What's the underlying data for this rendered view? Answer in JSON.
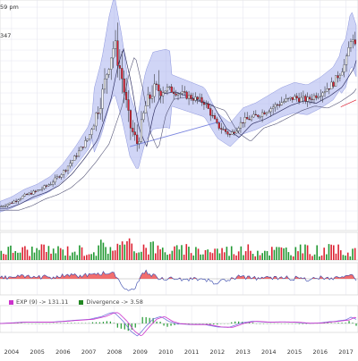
{
  "header": {
    "time_fragment": "59 pm",
    "value_fragment": "347"
  },
  "macd_legend": {
    "exp_label": "EXP (9) -> 131.11",
    "exp_color": "#cc33cc",
    "divergence_label": "Divergence -> 3.58",
    "divergence_color": "#228822"
  },
  "chart_data": {
    "type": "candlestick",
    "x_tick_labels": [
      "2004",
      "2005",
      "2006",
      "2007",
      "2008",
      "2009",
      "2010",
      "2011",
      "2012",
      "2013",
      "2014",
      "2015",
      "2016",
      "2017"
    ],
    "grid": true,
    "colors": {
      "up": "#229933",
      "down": "#dd2233",
      "bollinger_band": "#aab2ee",
      "moving_average": "#333366",
      "macd_line": "#7777dd",
      "signal_line": "#cc33cc",
      "rsi_fill": "#ee5555",
      "trendline": "#7b86e0"
    },
    "price": {
      "years": [
        2003.5,
        2004.0,
        2004.5,
        2005.0,
        2005.5,
        2006.0,
        2006.5,
        2007.0,
        2007.5,
        2007.8,
        2008.0,
        2008.3,
        2008.6,
        2008.9,
        2009.2,
        2009.5,
        2010.0,
        2010.5,
        2011.0,
        2011.5,
        2012.0,
        2012.5,
        2013.0,
        2013.5,
        2014.0,
        2014.5,
        2015.0,
        2015.5,
        2016.0,
        2016.5,
        2017.0,
        2017.2,
        2017.4
      ],
      "close": [
        25,
        27,
        30,
        32,
        35,
        40,
        47,
        55,
        72,
        88,
        95,
        80,
        60,
        52,
        68,
        75,
        76,
        74,
        72,
        70,
        60,
        56,
        62,
        64,
        67,
        70,
        72,
        71,
        74,
        78,
        87,
        98,
        92
      ]
    },
    "volume_panel": "up/down volume bars",
    "rsi_panel": "oscillator with red fill above midline",
    "macd_panel": "MACD, EXP(9) signal and divergence histogram"
  }
}
